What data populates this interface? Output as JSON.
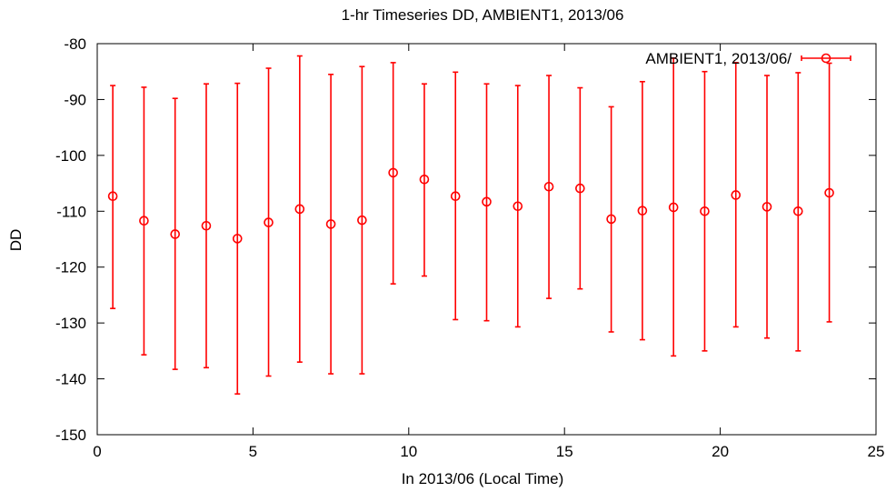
{
  "chart_data": {
    "type": "scatter",
    "title": "1-hr Timeseries DD, AMBIENT1, 2013/06",
    "xlabel": "In 2013/06 (Local Time)",
    "ylabel": "DD",
    "xlim": [
      0,
      25
    ],
    "ylim": [
      -150,
      -80
    ],
    "xticks": [
      0,
      5,
      10,
      15,
      20,
      25
    ],
    "yticks": [
      -150,
      -140,
      -130,
      -120,
      -110,
      -100,
      -90,
      -80
    ],
    "grid": false,
    "legend": "top-right",
    "marker": "open-circle",
    "color": "#ff0000",
    "series": [
      {
        "name": "AMBIENT1, 2013/06/",
        "x": [
          0.5,
          1.5,
          2.5,
          3.5,
          4.5,
          5.5,
          6.5,
          7.5,
          8.5,
          9.5,
          10.5,
          11.5,
          12.5,
          13.5,
          14.5,
          15.5,
          16.5,
          17.5,
          18.5,
          19.5,
          20.5,
          21.5,
          22.5,
          23.5
        ],
        "y": [
          -107.3,
          -111.7,
          -114.1,
          -112.6,
          -114.9,
          -112.0,
          -109.6,
          -112.3,
          -111.6,
          -103.1,
          -104.3,
          -107.3,
          -108.3,
          -109.1,
          -105.6,
          -105.9,
          -111.4,
          -109.9,
          -109.3,
          -110.0,
          -107.1,
          -109.2,
          -110.0,
          -106.7
        ],
        "y_low": [
          -127.4,
          -135.7,
          -138.3,
          -138.0,
          -142.7,
          -139.5,
          -137.0,
          -139.1,
          -139.1,
          -123.0,
          -121.6,
          -129.4,
          -129.6,
          -130.7,
          -125.6,
          -123.9,
          -131.6,
          -133.0,
          -135.9,
          -135.0,
          -130.7,
          -132.7,
          -135.0,
          -129.8
        ],
        "y_high": [
          -87.5,
          -87.8,
          -89.8,
          -87.2,
          -87.1,
          -84.4,
          -82.2,
          -85.5,
          -84.1,
          -83.4,
          -87.2,
          -85.1,
          -87.2,
          -87.5,
          -85.7,
          -87.9,
          -91.3,
          -86.8,
          -82.6,
          -85.0,
          -83.4,
          -85.7,
          -85.2,
          -83.5
        ]
      }
    ]
  }
}
